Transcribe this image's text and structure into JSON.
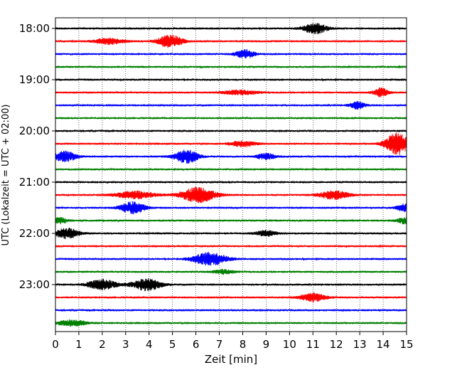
{
  "chart_data": {
    "type": "line",
    "title": "",
    "xlabel": "Zeit  [min]",
    "ylabel": "UTC (Lokalzeit = UTC + 02:00)",
    "xlim": [
      0,
      15
    ],
    "x_ticks": [
      "0",
      "1",
      "2",
      "3",
      "4",
      "5",
      "6",
      "7",
      "8",
      "9",
      "10",
      "11",
      "12",
      "13",
      "14",
      "15"
    ],
    "y_ticks": [
      "18:00",
      "19:00",
      "20:00",
      "21:00",
      "22:00",
      "23:00"
    ],
    "grid": "vertical-dotted",
    "colors": [
      "#000000",
      "#ff0000",
      "#0000ff",
      "#008000"
    ],
    "traces": [
      {
        "label": "18:00",
        "color": "#000000",
        "events": [
          {
            "t": 11.1,
            "amp": 7,
            "w": 0.5
          }
        ]
      },
      {
        "label": "18:15",
        "color": "#ff0000",
        "events": [
          {
            "t": 2.3,
            "amp": 4,
            "w": 0.6
          },
          {
            "t": 4.9,
            "amp": 9,
            "w": 0.5
          }
        ]
      },
      {
        "label": "18:30",
        "color": "#0000ff",
        "events": [
          {
            "t": 8.1,
            "amp": 6,
            "w": 0.4
          }
        ]
      },
      {
        "label": "18:45",
        "color": "#008000",
        "events": []
      },
      {
        "label": "19:00",
        "color": "#000000",
        "events": []
      },
      {
        "label": "19:15",
        "color": "#ff0000",
        "events": [
          {
            "t": 7.9,
            "amp": 3,
            "w": 0.7
          },
          {
            "t": 13.9,
            "amp": 6,
            "w": 0.3
          }
        ]
      },
      {
        "label": "19:30",
        "color": "#0000ff",
        "events": [
          {
            "t": 12.9,
            "amp": 5,
            "w": 0.3
          }
        ]
      },
      {
        "label": "19:45",
        "color": "#008000",
        "events": []
      },
      {
        "label": "20:00",
        "color": "#000000",
        "events": []
      },
      {
        "label": "20:15",
        "color": "#ff0000",
        "events": [
          {
            "t": 8.0,
            "amp": 4,
            "w": 0.5
          },
          {
            "t": 14.6,
            "amp": 15,
            "w": 0.5
          }
        ]
      },
      {
        "label": "20:30",
        "color": "#0000ff",
        "events": [
          {
            "t": 0.4,
            "amp": 7,
            "w": 0.5
          },
          {
            "t": 5.6,
            "amp": 9,
            "w": 0.5
          },
          {
            "t": 9.0,
            "amp": 4,
            "w": 0.4
          }
        ]
      },
      {
        "label": "20:45",
        "color": "#008000",
        "events": []
      },
      {
        "label": "21:00",
        "color": "#000000",
        "events": []
      },
      {
        "label": "21:15",
        "color": "#ff0000",
        "events": [
          {
            "t": 3.4,
            "amp": 5,
            "w": 0.8
          },
          {
            "t": 6.1,
            "amp": 11,
            "w": 0.7
          },
          {
            "t": 11.9,
            "amp": 6,
            "w": 0.6
          }
        ]
      },
      {
        "label": "21:30",
        "color": "#0000ff",
        "events": [
          {
            "t": 3.3,
            "amp": 8,
            "w": 0.5
          },
          {
            "t": 14.9,
            "amp": 5,
            "w": 0.3
          }
        ]
      },
      {
        "label": "21:45",
        "color": "#008000",
        "events": [
          {
            "t": 0.2,
            "amp": 4,
            "w": 0.3
          },
          {
            "t": 14.9,
            "amp": 4,
            "w": 0.3
          }
        ]
      },
      {
        "label": "22:00",
        "color": "#000000",
        "events": [
          {
            "t": 0.5,
            "amp": 7,
            "w": 0.5
          },
          {
            "t": 9.0,
            "amp": 4,
            "w": 0.4
          }
        ]
      },
      {
        "label": "22:15",
        "color": "#ff0000",
        "events": []
      },
      {
        "label": "22:30",
        "color": "#0000ff",
        "events": [
          {
            "t": 6.6,
            "amp": 9,
            "w": 0.7
          }
        ]
      },
      {
        "label": "22:45",
        "color": "#008000",
        "events": [
          {
            "t": 7.2,
            "amp": 3,
            "w": 0.4
          }
        ]
      },
      {
        "label": "23:00",
        "color": "#000000",
        "events": [
          {
            "t": 2.0,
            "amp": 7,
            "w": 0.6
          },
          {
            "t": 3.9,
            "amp": 8,
            "w": 0.6
          }
        ]
      },
      {
        "label": "23:15",
        "color": "#ff0000",
        "events": [
          {
            "t": 11.0,
            "amp": 6,
            "w": 0.5
          }
        ]
      },
      {
        "label": "23:30",
        "color": "#0000ff",
        "events": []
      },
      {
        "label": "23:45",
        "color": "#008000",
        "events": [
          {
            "t": 0.7,
            "amp": 4,
            "w": 0.6
          }
        ]
      }
    ]
  }
}
